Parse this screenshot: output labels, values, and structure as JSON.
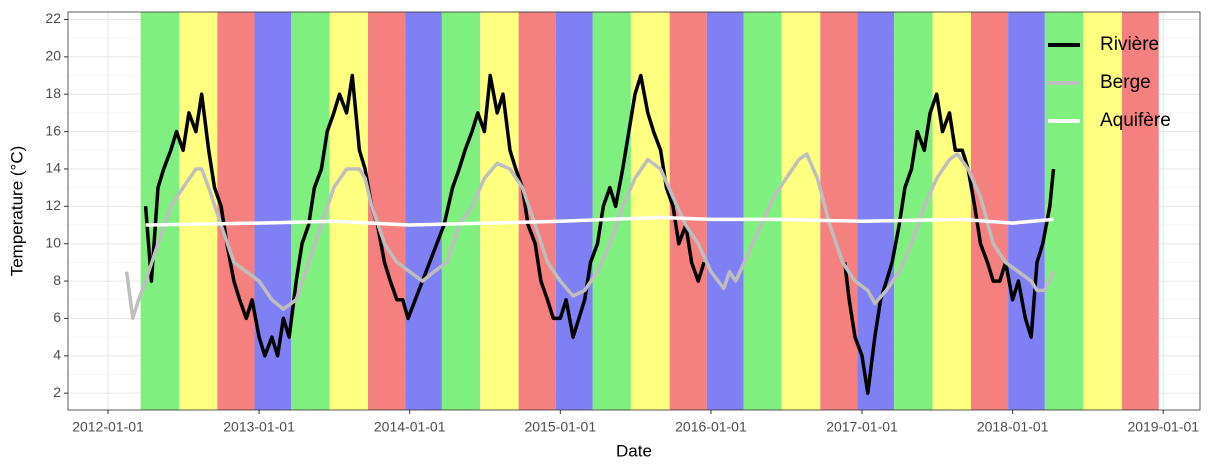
{
  "chart_data": {
    "type": "line",
    "x_label": "Date",
    "y_label": "Temperature (°C)",
    "xlim": [
      "2011-09-26",
      "2019-03-31"
    ],
    "xticks": [
      "2012-01-01",
      "2013-01-01",
      "2014-01-01",
      "2015-01-01",
      "2016-01-01",
      "2017-01-01",
      "2018-01-01",
      "2019-01-01"
    ],
    "ylim": [
      1.1,
      22.4
    ],
    "yticks": [
      2,
      4,
      6,
      8,
      10,
      12,
      14,
      16,
      18,
      20,
      22
    ],
    "grid": true,
    "legend_position": "top-right",
    "band_colors": [
      "#7ff07f",
      "#ffff80",
      "#f58080",
      "#8080f5"
    ],
    "band_edges": [
      "2012-03-20",
      "2012-06-21",
      "2012-09-22",
      "2012-12-21",
      "2013-03-20",
      "2013-06-21",
      "2013-09-22",
      "2013-12-21",
      "2014-03-20",
      "2014-06-21",
      "2014-09-22",
      "2014-12-21",
      "2015-03-20",
      "2015-06-21",
      "2015-09-23",
      "2015-12-22",
      "2016-03-20",
      "2016-06-20",
      "2016-09-22",
      "2016-12-21",
      "2017-03-20",
      "2017-06-21",
      "2017-09-22",
      "2017-12-21",
      "2018-03-20",
      "2018-06-21",
      "2018-09-23",
      "2018-12-21"
    ],
    "series": [
      {
        "name": "Rivière",
        "color": "#000000",
        "x": [
          "2012-04-01",
          "2012-04-15",
          "2012-05-01",
          "2012-05-15",
          "2012-06-01",
          "2012-06-15",
          "2012-07-01",
          "2012-07-15",
          "2012-08-01",
          "2012-08-15",
          "2012-09-01",
          "2012-09-15",
          "2012-10-01",
          "2012-10-15",
          "2012-11-01",
          "2012-11-15",
          "2012-12-01",
          "2012-12-15",
          "2013-01-01",
          "2013-01-15",
          "2013-02-01",
          "2013-02-15",
          "2013-03-01",
          "2013-03-15",
          "2013-04-01",
          "2013-04-15",
          "2013-05-01",
          "2013-05-15",
          "2013-06-01",
          "2013-06-15",
          "2013-07-01",
          "2013-07-15",
          "2013-08-01",
          "2013-08-15",
          "2013-09-01",
          "2013-09-15",
          "2013-10-01",
          "2013-10-15",
          "2013-11-01",
          "2013-11-15",
          "2013-12-01",
          "2013-12-15",
          "2013-12-28",
          "2014-03-25",
          "2014-04-15",
          "2014-05-01",
          "2014-05-15",
          "2014-06-01",
          "2014-06-15",
          "2014-07-01",
          "2014-07-15",
          "2014-08-01",
          "2014-08-15",
          "2014-09-01",
          "2014-09-15",
          "2014-10-01",
          "2014-10-15",
          "2014-11-01",
          "2014-11-15",
          "2014-12-01",
          "2014-12-15",
          "2015-01-01",
          "2015-01-15",
          "2015-02-01",
          "2015-02-15",
          "2015-03-01",
          "2015-03-15",
          "2015-04-01",
          "2015-04-15",
          "2015-05-01",
          "2015-05-15",
          "2015-06-01",
          "2015-07-01",
          "2015-07-15",
          "2015-08-01",
          "2015-08-15",
          "2015-09-01",
          "2015-09-15",
          "2015-10-01",
          "2015-10-15",
          "2015-11-01",
          "2015-11-15",
          "2015-12-01",
          "2015-12-15",
          "2016-06-01",
          "2016-11-20",
          "2016-12-01",
          "2016-12-15",
          "2017-01-01",
          "2017-01-15",
          "2017-02-01",
          "2017-02-15",
          "2017-03-01",
          "2017-03-15",
          "2017-04-01",
          "2017-04-15",
          "2017-05-01",
          "2017-05-15",
          "2017-06-01",
          "2017-06-15",
          "2017-07-01",
          "2017-07-15",
          "2017-08-01",
          "2017-08-15",
          "2017-09-01",
          "2017-09-15",
          "2017-10-01",
          "2017-10-15",
          "2017-11-01",
          "2017-11-15",
          "2017-12-01",
          "2017-12-15",
          "2018-01-01",
          "2018-01-15",
          "2018-02-01",
          "2018-02-15",
          "2018-03-01",
          "2018-03-15",
          "2018-04-01",
          "2018-04-10"
        ],
        "values": [
          12,
          8,
          13,
          14,
          15,
          16,
          15,
          17,
          16,
          18,
          15,
          13,
          12,
          10,
          8,
          7,
          6,
          7,
          5,
          4,
          5,
          4,
          6,
          5,
          8,
          10,
          11,
          13,
          14,
          16,
          17,
          18,
          17,
          19,
          15,
          14,
          12,
          11,
          9,
          8,
          7,
          7,
          6,
          11,
          13,
          14,
          15,
          16,
          17,
          16,
          19,
          17,
          18,
          15,
          14,
          13,
          11,
          10,
          8,
          7,
          6,
          6,
          7,
          5,
          6,
          7,
          9,
          10,
          12,
          13,
          12,
          14,
          18,
          19,
          17,
          16,
          15,
          13,
          12,
          10,
          11,
          9,
          8,
          9,
          null,
          9,
          7,
          5,
          4,
          2,
          5,
          7,
          8,
          9,
          11,
          13,
          14,
          16,
          15,
          17,
          18,
          16,
          17,
          15,
          15,
          14,
          12,
          10,
          9,
          8,
          8,
          9,
          7,
          8,
          6,
          5,
          9,
          10,
          12,
          14
        ]
      },
      {
        "name": "Berge",
        "color": "#bebebe",
        "x": [
          "2012-02-15",
          "2012-03-01",
          "2012-03-15",
          "2012-04-01",
          "2012-05-01",
          "2012-06-01",
          "2012-07-01",
          "2012-08-01",
          "2012-08-15",
          "2012-09-01",
          "2012-10-01",
          "2012-11-01",
          "2012-12-01",
          "2013-01-01",
          "2013-02-01",
          "2013-03-01",
          "2013-04-01",
          "2013-05-01",
          "2013-06-01",
          "2013-07-01",
          "2013-08-01",
          "2013-09-01",
          "2013-09-15",
          "2013-10-01",
          "2013-11-01",
          "2013-12-01",
          "2014-01-01",
          "2014-02-01",
          "2014-03-01",
          "2014-04-01",
          "2014-05-01",
          "2014-06-01",
          "2014-07-01",
          "2014-08-01",
          "2014-09-01",
          "2014-10-01",
          "2014-11-01",
          "2014-12-01",
          "2015-01-01",
          "2015-02-01",
          "2015-03-01",
          "2015-04-01",
          "2015-05-01",
          "2015-06-01",
          "2015-07-01",
          "2015-08-01",
          "2015-09-01",
          "2015-10-01",
          "2015-11-01",
          "2015-12-01",
          "2016-01-01",
          "2016-02-01",
          "2016-02-15",
          "2016-03-01",
          "2016-04-01",
          "2016-05-01",
          "2016-06-01",
          "2016-07-01",
          "2016-08-01",
          "2016-08-20",
          "2016-09-15",
          "2016-10-15",
          "2016-11-15",
          "2016-12-15",
          "2017-01-15",
          "2017-02-01",
          "2017-03-01",
          "2017-04-01",
          "2017-05-01",
          "2017-06-01",
          "2017-07-01",
          "2017-08-01",
          "2017-08-20",
          "2017-09-15",
          "2017-10-15",
          "2017-11-15",
          "2017-12-15",
          "2018-01-15",
          "2018-02-15",
          "2018-03-01",
          "2018-03-20",
          "2018-04-10"
        ],
        "values": [
          8.5,
          6,
          7,
          8,
          10,
          12,
          13,
          14,
          14,
          13,
          11,
          9,
          8.5,
          8,
          7,
          6.5,
          7,
          9,
          11,
          13,
          14,
          14,
          13.5,
          12,
          10,
          9,
          8.5,
          8,
          8.5,
          9,
          11,
          12,
          13.5,
          14.3,
          14,
          13,
          11,
          9,
          8,
          7.2,
          7.5,
          8.5,
          10,
          12,
          13.5,
          14.5,
          14,
          12.5,
          11,
          10,
          8.5,
          7.6,
          8.5,
          8,
          9.5,
          11,
          12.5,
          13.5,
          14.5,
          14.8,
          13.5,
          11,
          9,
          8,
          7.5,
          6.8,
          7.5,
          8.5,
          10,
          12,
          13.5,
          14.5,
          14.8,
          14,
          12.5,
          10,
          9,
          8.5,
          8,
          7.5,
          7.5,
          8.5
        ]
      },
      {
        "name": "Aquifère",
        "color": "#ffffff",
        "x": [
          "2012-04-01",
          "2013-01-01",
          "2013-07-01",
          "2014-01-01",
          "2015-01-01",
          "2015-09-01",
          "2016-01-01",
          "2016-06-01",
          "2017-01-01",
          "2017-09-01",
          "2018-01-01",
          "2018-04-10"
        ],
        "values": [
          11,
          11.1,
          11.2,
          11,
          11.2,
          11.4,
          11.3,
          11.3,
          11.2,
          11.3,
          11.1,
          11.3
        ]
      }
    ]
  }
}
